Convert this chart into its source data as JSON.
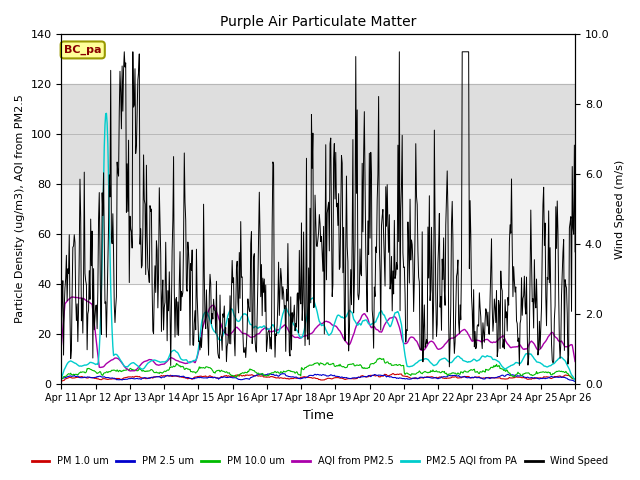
{
  "title": "Purple Air Particulate Matter",
  "xlabel": "Time",
  "ylabel_left": "Particle Density (ug/m3), AQI from PM2.5",
  "ylabel_right": "Wind Speed (m/s)",
  "annotation_text": "BC_pa",
  "annotation_box_color": "#FFFF99",
  "annotation_box_edge": "#999900",
  "annotation_text_color": "#880000",
  "ylim_left": [
    0,
    140
  ],
  "ylim_right": [
    0,
    10.0
  ],
  "xtick_labels": [
    "Apr 11",
    "Apr 12",
    "Apr 13",
    "Apr 14",
    "Apr 15",
    "Apr 16",
    "Apr 17",
    "Apr 18",
    "Apr 19",
    "Apr 20",
    "Apr 21",
    "Apr 22",
    "Apr 23",
    "Apr 24",
    "Apr 25",
    "Apr 26"
  ],
  "bg_band_dark": [
    80,
    120
  ],
  "bg_band_light": [
    40,
    80
  ],
  "colors": {
    "pm1": "#CC0000",
    "pm25": "#0000CC",
    "pm10": "#00BB00",
    "aqi_pm25": "#AA00AA",
    "aqi_pa": "#00CCCC",
    "wind": "#000000"
  },
  "legend_labels": [
    "PM 1.0 um",
    "PM 2.5 um",
    "PM 10.0 um",
    "AQI from PM2.5",
    "PM2.5 AQI from PA",
    "Wind Speed"
  ],
  "n_points": 720,
  "seed": 12345
}
